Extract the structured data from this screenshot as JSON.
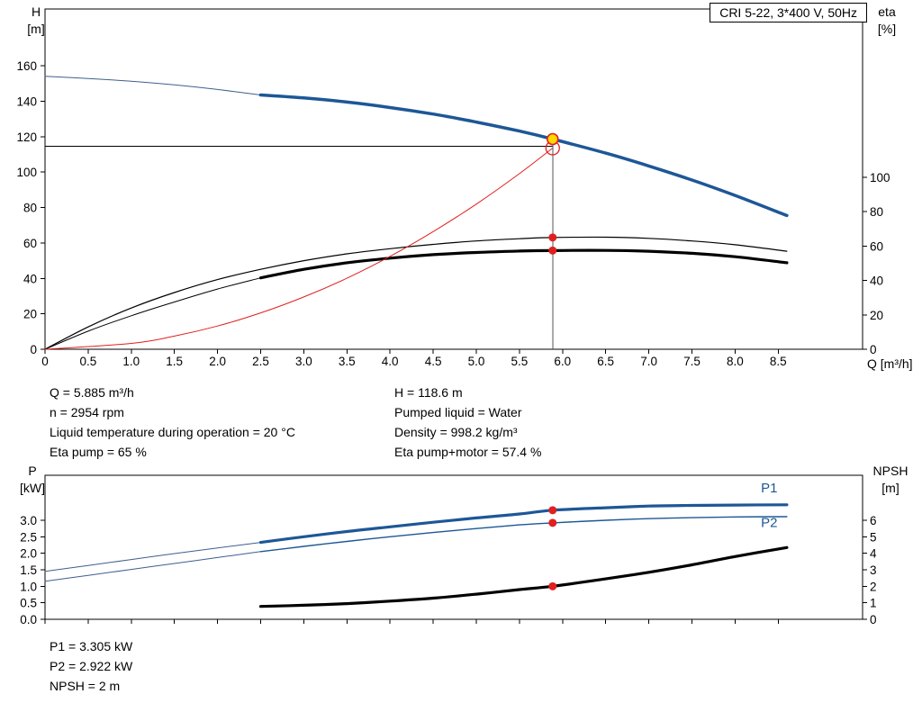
{
  "header": {
    "title": "CRI 5-22, 3*400 V, 50Hz"
  },
  "axes": {
    "top": {
      "left_title": [
        "H",
        "[m]"
      ],
      "right_title": [
        "eta",
        "[%]"
      ],
      "x_title": "Q [m³/h]",
      "x_tick_labels": [
        "0",
        "0.5",
        "1.0",
        "1.5",
        "2.0",
        "2.5",
        "3.0",
        "3.5",
        "4.0",
        "4.5",
        "5.0",
        "5.5",
        "6.0",
        "6.5",
        "7.0",
        "7.5",
        "8.0",
        "8.5"
      ],
      "left_tick_labels": [
        "0",
        "20",
        "40",
        "60",
        "80",
        "100",
        "120",
        "140",
        "160"
      ],
      "right_tick_labels": [
        "0",
        "20",
        "40",
        "60",
        "80",
        "100"
      ]
    },
    "bottom": {
      "left_title": [
        "P",
        "[kW]"
      ],
      "right_title": [
        "NPSH",
        "[m]"
      ],
      "left_tick_labels": [
        "0.0",
        "0.5",
        "1.0",
        "1.5",
        "2.0",
        "2.5",
        "3.0"
      ],
      "right_tick_labels": [
        "0",
        "1",
        "2",
        "3",
        "4",
        "5",
        "6"
      ]
    }
  },
  "info_top_left": [
    "Q = 5.885 m³/h",
    "n = 2954 rpm",
    "Liquid temperature during operation = 20 °C",
    "Eta pump = 65 %"
  ],
  "info_top_right": [
    "H = 118.6 m",
    "Pumped liquid = Water",
    "Density = 998.2 kg/m³",
    "Eta pump+motor = 57.4 %"
  ],
  "info_bottom": [
    "P1 = 3.305 kW",
    "P2 = 2.922 kW",
    "NPSH = 2 m"
  ],
  "colors": {
    "curve_blue": "#1d5796",
    "ext_blue": "#3f5f8e",
    "red": "#e02020",
    "yellow": "#ffd800",
    "black": "#000000"
  },
  "chart_data": [
    {
      "type": "line",
      "title": "QH and efficiency curves",
      "x_label": "Q [m³/h]",
      "x_range": [
        0,
        9.5
      ],
      "y_left_label": "H [m]",
      "y_left_range": [
        0,
        192
      ],
      "y_right_label": "eta [%]",
      "y_right_range": [
        0,
        198
      ],
      "operating_point": {
        "Q": 5.885,
        "H": 118.6,
        "eta_pump": 65,
        "eta_pump_motor": 57.4
      },
      "series": [
        {
          "name": "head-curve-extension",
          "axis": "H",
          "color": "#3f5f8e",
          "width": 1,
          "points": [
            [
              0,
              154
            ],
            [
              0.5,
              152.8
            ],
            [
              1,
              151.2
            ],
            [
              1.5,
              149.2
            ],
            [
              2,
              146.6
            ],
            [
              2.5,
              143.5
            ]
          ]
        },
        {
          "name": "head-curve",
          "axis": "H",
          "color": "#1d5796",
          "width": 3.5,
          "points": [
            [
              2.5,
              143.5
            ],
            [
              3,
              141.8
            ],
            [
              3.5,
              139.5
            ],
            [
              4,
              136.4
            ],
            [
              4.5,
              132.7
            ],
            [
              5,
              128.2
            ],
            [
              5.5,
              123.1
            ],
            [
              5.885,
              118.6
            ],
            [
              6.5,
              110.7
            ],
            [
              7,
              103.4
            ],
            [
              7.5,
              95.5
            ],
            [
              8,
              86.8
            ],
            [
              8.6,
              75.5
            ]
          ]
        },
        {
          "name": "eta-pump-curve",
          "axis": "eta",
          "color": "#000000",
          "width": 1.2,
          "points": [
            [
              0,
              0
            ],
            [
              0.5,
              13
            ],
            [
              1,
              24
            ],
            [
              1.5,
              33
            ],
            [
              2,
              40.5
            ],
            [
              2.5,
              46.5
            ],
            [
              3,
              51.5
            ],
            [
              3.5,
              55.5
            ],
            [
              4,
              58.5
            ],
            [
              4.5,
              61
            ],
            [
              5,
              63
            ],
            [
              5.5,
              64.3
            ],
            [
              5.885,
              65
            ],
            [
              6.5,
              65.2
            ],
            [
              7,
              64.5
            ],
            [
              7.5,
              63
            ],
            [
              8,
              60.8
            ],
            [
              8.6,
              57
            ]
          ]
        },
        {
          "name": "eta-pump-motor-extension",
          "axis": "eta",
          "color": "#000000",
          "width": 1,
          "points": [
            [
              0,
              0
            ],
            [
              0.5,
              10.5
            ],
            [
              1,
              19.5
            ],
            [
              1.5,
              27.5
            ],
            [
              2,
              35
            ],
            [
              2.5,
              41.5
            ]
          ]
        },
        {
          "name": "eta-pump-motor-curve",
          "axis": "eta",
          "color": "#000000",
          "width": 3.2,
          "points": [
            [
              2.5,
              41.5
            ],
            [
              3,
              46.5
            ],
            [
              3.5,
              50.3
            ],
            [
              4,
              53
            ],
            [
              4.5,
              55
            ],
            [
              5,
              56.3
            ],
            [
              5.5,
              57.1
            ],
            [
              5.885,
              57.4
            ],
            [
              6.5,
              57.5
            ],
            [
              7,
              57
            ],
            [
              7.5,
              55.8
            ],
            [
              8,
              53.8
            ],
            [
              8.6,
              50.3
            ]
          ]
        },
        {
          "name": "duty-parabola",
          "axis": "H",
          "color": "#e02020",
          "width": 1,
          "points": [
            [
              0,
              0
            ],
            [
              1,
              3.3
            ],
            [
              1.5,
              7.4
            ],
            [
              2,
              13.1
            ],
            [
              2.5,
              20.5
            ],
            [
              3,
              29.5
            ],
            [
              3.5,
              40.1
            ],
            [
              4,
              52.4
            ],
            [
              4.5,
              66.4
            ],
            [
              5,
              81.9
            ],
            [
              5.5,
              99.1
            ],
            [
              5.885,
              113.5
            ]
          ]
        }
      ],
      "crosshair": {
        "q": 5.885,
        "h_line_value": 114.5,
        "v_line_top": 121
      },
      "markers": [
        {
          "kind": "open-circle",
          "axis": "H",
          "q": 5.885,
          "value": 113.5
        },
        {
          "kind": "duty-point",
          "axis": "H",
          "q": 5.885,
          "value": 118.6
        },
        {
          "kind": "dot",
          "axis": "eta",
          "q": 5.885,
          "value": 65
        },
        {
          "kind": "dot",
          "axis": "eta",
          "q": 5.885,
          "value": 57.4
        }
      ]
    },
    {
      "type": "line",
      "title": "Power and NPSH curves",
      "x_label": "Q [m³/h]",
      "x_range": [
        0,
        9.5
      ],
      "y_left_label": "P [kW]",
      "y_left_range": [
        0,
        4.36
      ],
      "y_right_label": "NPSH [m]",
      "y_right_range": [
        0,
        8.7
      ],
      "operating_point": {
        "Q": 5.885,
        "P1": 3.305,
        "P2": 2.922,
        "NPSH": 2
      },
      "series": [
        {
          "name": "p1-extension",
          "axis": "P",
          "color": "#3f5f8e",
          "width": 1,
          "points": [
            [
              0,
              1.45
            ],
            [
              0.5,
              1.63
            ],
            [
              1,
              1.81
            ],
            [
              1.5,
              1.99
            ],
            [
              2,
              2.16
            ],
            [
              2.5,
              2.33
            ]
          ]
        },
        {
          "name": "p2-extension",
          "axis": "P",
          "color": "#3f5f8e",
          "width": 1,
          "points": [
            [
              0,
              1.15
            ],
            [
              0.5,
              1.33
            ],
            [
              1,
              1.51
            ],
            [
              1.5,
              1.69
            ],
            [
              2,
              1.87
            ],
            [
              2.5,
              2.05
            ]
          ]
        },
        {
          "name": "p2-curve",
          "axis": "P",
          "color": "#1d5796",
          "width": 1.4,
          "points": [
            [
              2.5,
              2.05
            ],
            [
              3,
              2.21
            ],
            [
              3.5,
              2.36
            ],
            [
              4,
              2.5
            ],
            [
              4.5,
              2.63
            ],
            [
              5,
              2.75
            ],
            [
              5.5,
              2.86
            ],
            [
              5.885,
              2.922
            ],
            [
              6.5,
              3.0
            ],
            [
              7,
              3.05
            ],
            [
              7.5,
              3.08
            ],
            [
              8,
              3.1
            ],
            [
              8.6,
              3.11
            ]
          ]
        },
        {
          "name": "p1-curve",
          "axis": "P",
          "color": "#1d5796",
          "width": 3.2,
          "points": [
            [
              2.5,
              2.33
            ],
            [
              3,
              2.5
            ],
            [
              3.5,
              2.66
            ],
            [
              4,
              2.8
            ],
            [
              4.5,
              2.94
            ],
            [
              5,
              3.07
            ],
            [
              5.5,
              3.19
            ],
            [
              5.885,
              3.305
            ],
            [
              6.5,
              3.38
            ],
            [
              7,
              3.43
            ],
            [
              7.5,
              3.45
            ],
            [
              8,
              3.46
            ],
            [
              8.6,
              3.47
            ]
          ]
        },
        {
          "name": "npsh-curve",
          "axis": "NPSH",
          "color": "#000000",
          "width": 3.2,
          "points": [
            [
              2.5,
              0.78
            ],
            [
              3,
              0.85
            ],
            [
              3.5,
              0.95
            ],
            [
              4,
              1.1
            ],
            [
              4.5,
              1.28
            ],
            [
              5,
              1.52
            ],
            [
              5.5,
              1.8
            ],
            [
              5.885,
              2.0
            ],
            [
              6.5,
              2.45
            ],
            [
              7,
              2.85
            ],
            [
              7.5,
              3.3
            ],
            [
              8,
              3.8
            ],
            [
              8.6,
              4.35
            ]
          ]
        }
      ],
      "curve_labels": [
        {
          "text": "P1",
          "axis": "P",
          "q": 8.3,
          "value": 3.85
        },
        {
          "text": "P2",
          "axis": "P",
          "q": 8.3,
          "value": 2.8
        }
      ],
      "markers": [
        {
          "kind": "dot",
          "axis": "P",
          "q": 5.885,
          "value": 3.305
        },
        {
          "kind": "dot",
          "axis": "P",
          "q": 5.885,
          "value": 2.922
        },
        {
          "kind": "dot",
          "axis": "NPSH",
          "q": 5.885,
          "value": 2.0
        }
      ]
    }
  ]
}
